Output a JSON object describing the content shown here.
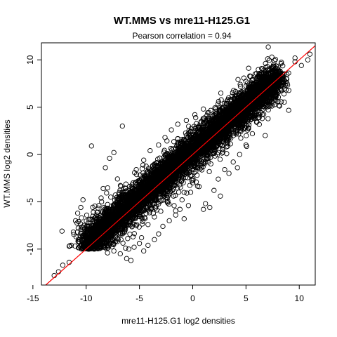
{
  "chart_data": {
    "type": "scatter",
    "title": "WT.MMS vs mre11-H125.G1",
    "subtitle": "Pearson correlation =  0.94",
    "xlabel": "mre11-H125.G1 log2 densities",
    "ylabel": "WT.MMS log2 densities",
    "xlim": [
      -14.2,
      11.5
    ],
    "ylim": [
      -13.8,
      11.8
    ],
    "x_ticks": [
      -15,
      -10,
      -5,
      0,
      5,
      10
    ],
    "x_tick_labels": [
      "-15",
      "-10",
      "-5",
      "0",
      "5",
      "10"
    ],
    "y_ticks": [
      -10,
      -5,
      0,
      5,
      10
    ],
    "y_tick_labels": [
      "-10",
      "-5",
      "0",
      "5",
      "10"
    ],
    "grid": false,
    "legend": "none",
    "marker": "open-circle",
    "point_color": "#000000",
    "reference_line": {
      "type": "identity",
      "slope": 1,
      "intercept": 0,
      "color": "#ff0000"
    },
    "points": [
      [
        -13,
        -12.8
      ],
      [
        -12.6,
        -12.4
      ],
      [
        -12.2,
        -11.7
      ],
      [
        -11.6,
        -11.4
      ],
      [
        -11.4,
        -9.6
      ],
      [
        -11.2,
        -8.2
      ],
      [
        -11.0,
        -7.0
      ],
      [
        -10.8,
        -6.2
      ],
      [
        -10.5,
        -5.6
      ],
      [
        -10.3,
        -4.8
      ],
      [
        -10.6,
        -9.0
      ],
      [
        -10.0,
        -8.8
      ],
      [
        -9.8,
        -10.0
      ],
      [
        -9.6,
        -9.2
      ],
      [
        -9.4,
        -8.0
      ],
      [
        -9.2,
        -7.2
      ],
      [
        -9.0,
        -6.4
      ],
      [
        -8.8,
        -5.4
      ],
      [
        -8.6,
        -4.6
      ],
      [
        -8.4,
        -3.6
      ],
      [
        -9.5,
        0.9
      ],
      [
        -8.2,
        -1.4
      ],
      [
        -7.8,
        -0.4
      ],
      [
        -7.4,
        0.2
      ],
      [
        -6.6,
        3.0
      ],
      [
        -6.3,
        -9.9
      ],
      [
        -6.0,
        -10.0
      ],
      [
        -5.5,
        -9.8
      ],
      [
        -5.0,
        -9.4
      ],
      [
        -4.8,
        -8.8
      ],
      [
        -5.3,
        -1.6
      ],
      [
        -4.6,
        -0.6
      ],
      [
        -4.0,
        0.4
      ],
      [
        -3.2,
        1.0
      ],
      [
        -2.6,
        1.8
      ],
      [
        -2.0,
        2.6
      ],
      [
        -1.4,
        3.2
      ],
      [
        -0.6,
        3.6
      ],
      [
        0.2,
        4.2
      ],
      [
        1.0,
        4.8
      ],
      [
        -4.2,
        -7.4
      ],
      [
        -3.6,
        -6.6
      ],
      [
        -3.0,
        -6.0
      ],
      [
        -2.4,
        -5.0
      ],
      [
        -1.8,
        -4.4
      ],
      [
        -1.0,
        -4.8
      ],
      [
        -0.2,
        -4.0
      ],
      [
        0.6,
        -3.4
      ],
      [
        1.2,
        -5.2
      ],
      [
        1.6,
        -5.6
      ],
      [
        2.4,
        -2.6
      ],
      [
        3.0,
        -1.6
      ],
      [
        3.8,
        -0.8
      ],
      [
        4.4,
        0.0
      ],
      [
        5.0,
        1.0
      ],
      [
        5.6,
        2.2
      ],
      [
        6.0,
        3.4
      ],
      [
        6.4,
        4.4
      ],
      [
        6.8,
        5.6
      ],
      [
        6.8,
        2.0
      ],
      [
        7.2,
        6.0
      ],
      [
        7.6,
        6.8
      ],
      [
        8.0,
        7.6
      ],
      [
        8.4,
        8.2
      ],
      [
        9.0,
        8.6
      ],
      [
        9.6,
        9.8
      ],
      [
        9.6,
        10.2
      ],
      [
        10.2,
        9.4
      ],
      [
        10.8,
        10.0
      ],
      [
        11.0,
        10.6
      ],
      [
        -7.0,
        -9.0
      ],
      [
        -6.8,
        -8.0
      ],
      [
        -6.4,
        -7.0
      ],
      [
        -6.0,
        -6.0
      ],
      [
        -5.6,
        -5.2
      ],
      [
        -5.2,
        -4.6
      ],
      [
        -4.8,
        -3.8
      ],
      [
        -4.4,
        -3.0
      ],
      [
        -3.8,
        -2.4
      ],
      [
        -3.4,
        -1.8
      ],
      [
        -3.0,
        -1.0
      ],
      [
        -2.6,
        -0.4
      ],
      [
        -2.2,
        0.0
      ],
      [
        -1.8,
        0.6
      ],
      [
        -1.4,
        1.2
      ],
      [
        -1.0,
        1.6
      ],
      [
        -0.6,
        2.0
      ],
      [
        -0.2,
        2.4
      ],
      [
        0.4,
        2.8
      ],
      [
        0.8,
        3.0
      ],
      [
        -8.0,
        -10.4
      ],
      [
        -7.4,
        -10.2
      ],
      [
        -6.8,
        -10.5
      ],
      [
        -6.2,
        -11.0
      ],
      [
        -5.8,
        -11.2
      ],
      [
        -4.6,
        -10.2
      ],
      [
        -4.2,
        -9.6
      ],
      [
        -3.6,
        -9.0
      ],
      [
        -3.2,
        -8.4
      ],
      [
        -2.8,
        -7.6
      ],
      [
        -2.2,
        -7.0
      ],
      [
        -1.6,
        -6.4
      ],
      [
        -1.2,
        -5.8
      ],
      [
        -0.8,
        -6.8
      ],
      [
        -0.4,
        -5.4
      ],
      [
        0.0,
        -3.0
      ],
      [
        0.4,
        -2.2
      ],
      [
        0.8,
        -1.4
      ],
      [
        1.2,
        -0.8
      ],
      [
        1.6,
        0.0
      ],
      [
        2.0,
        0.6
      ],
      [
        2.4,
        1.4
      ],
      [
        2.8,
        2.0
      ],
      [
        3.2,
        2.6
      ],
      [
        3.6,
        3.4
      ],
      [
        4.0,
        4.0
      ],
      [
        4.4,
        4.6
      ],
      [
        4.8,
        5.2
      ],
      [
        5.2,
        5.6
      ],
      [
        5.6,
        6.2
      ],
      [
        1.4,
        2.0
      ],
      [
        1.8,
        3.0
      ],
      [
        2.2,
        4.0
      ],
      [
        2.6,
        4.6
      ],
      [
        3.0,
        5.4
      ],
      [
        2.0,
        -3.8
      ],
      [
        2.6,
        -4.4
      ],
      [
        1.0,
        -5.8
      ],
      [
        3.4,
        -2.0
      ],
      [
        4.2,
        -1.4
      ]
    ]
  }
}
